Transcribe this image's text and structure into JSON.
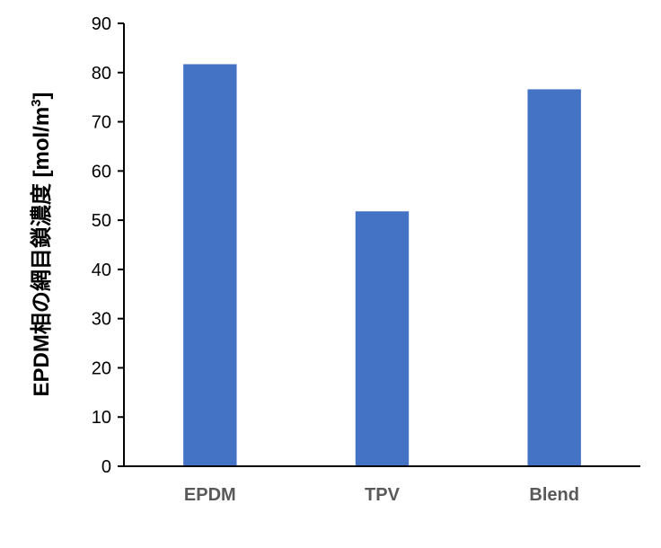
{
  "chart_data": {
    "type": "bar",
    "categories": [
      "EPDM",
      "TPV",
      "Blend"
    ],
    "values": [
      81.7,
      51.8,
      76.6
    ],
    "ylabel": "EPDM相の網目鎖濃度 [mol/m",
    "ylabel_superscript": "3",
    "ylabel_suffix": "]",
    "ylim": [
      0,
      90
    ],
    "yticks": [
      "0",
      "10",
      "20",
      "30",
      "40",
      "50",
      "60",
      "70",
      "80",
      "90"
    ],
    "grid": false,
    "legend": "none",
    "bar_color": "#4472C4"
  }
}
